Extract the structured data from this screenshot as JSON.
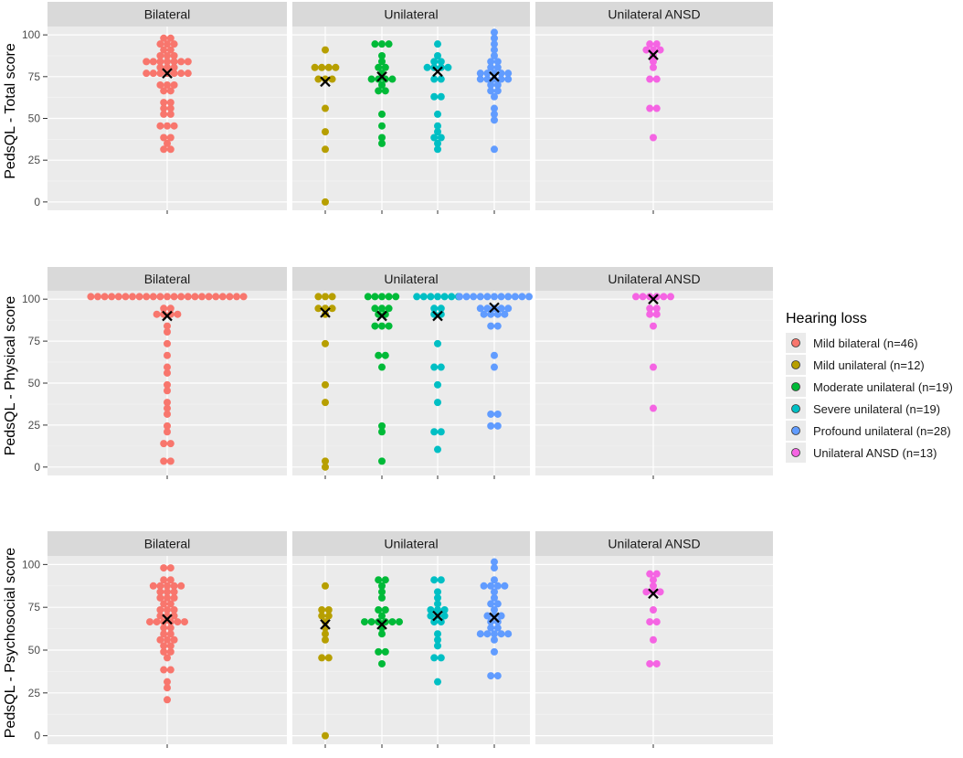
{
  "chart_data": {
    "type": "scatter",
    "subtype": "beeswarm",
    "ylim": [
      -5,
      105
    ],
    "yticks": [
      0,
      25,
      50,
      75,
      100
    ],
    "facet_cols": [
      "Bilateral",
      "Unilateral",
      "Unilateral ANSD"
    ],
    "legend": {
      "title": "Hearing loss",
      "position": "right",
      "items": [
        {
          "key": "mild_bilateral",
          "label": "Mild bilateral (n=46)",
          "color": "#F8766D"
        },
        {
          "key": "mild_unilateral",
          "label": "Mild unilateral (n=12)",
          "color": "#B79F00"
        },
        {
          "key": "moderate_unilateral",
          "label": "Moderate unilateral (n=19)",
          "color": "#00BA38"
        },
        {
          "key": "severe_unilateral",
          "label": "Severe unilateral (n=19)",
          "color": "#00BFC4"
        },
        {
          "key": "profound_unilateral",
          "label": "Profound unilateral (n=28)",
          "color": "#619CFF"
        },
        {
          "key": "unilateral_ansd",
          "label": "Unilateral ANSD (n=13)",
          "color": "#F564E3"
        }
      ]
    },
    "mean_marker": "×",
    "panels": [
      {
        "ylabel": "PedsQL - Total score",
        "facets": [
          {
            "label": "Bilateral",
            "groups": [
              {
                "key": "mild_bilateral",
                "mean": 77,
                "values": [
                  99,
                  99,
                  96,
                  93,
                  93,
                  90,
                  90,
                  88,
                  88,
                  88,
                  85,
                  85,
                  85,
                  85,
                  85,
                  85,
                  85,
                  81,
                  81,
                  81,
                  78,
                  78,
                  76,
                  76,
                  76,
                  76,
                  76,
                  70,
                  70,
                  70,
                  66,
                  66,
                  61,
                  61,
                  56,
                  56,
                  52,
                  52,
                  47,
                  47,
                  47,
                  38,
                  38,
                  36,
                  33,
                  33
                ]
              }
            ]
          },
          {
            "label": "Unilateral",
            "groups": [
              {
                "key": "mild_unilateral",
                "mean": 72,
                "values": [
                  92,
                  81,
                  81,
                  81,
                  81,
                  72,
                  72,
                  55,
                  42,
                  32,
                  0,
                  75
                ]
              },
              {
                "key": "moderate_unilateral",
                "mean": 75,
                "values": [
                  95,
                  95,
                  95,
                  88,
                  85,
                  81,
                  81,
                  78,
                  75,
                  75,
                  75,
                  70,
                  65,
                  65,
                  54,
                  44,
                  38,
                  34,
                  75
                ]
              },
              {
                "key": "severe_unilateral",
                "mean": 78,
                "values": [
                  94,
                  89,
                  85,
                  85,
                  81,
                  81,
                  81,
                  79,
                  75,
                  75,
                  63,
                  63,
                  54,
                  45,
                  42,
                  38,
                  38,
                  34,
                  30
                ]
              },
              {
                "key": "profound_unilateral",
                "mean": 75,
                "values": [
                  100,
                  97,
                  94,
                  91,
                  88,
                  85,
                  85,
                  81,
                  81,
                  78,
                  78,
                  78,
                  76,
                  76,
                  73,
                  73,
                  73,
                  73,
                  73,
                  70,
                  70,
                  66,
                  66,
                  62,
                  57,
                  54,
                  50,
                  33
                ]
              }
            ]
          },
          {
            "label": "Unilateral ANSD",
            "groups": [
              {
                "key": "unilateral_ansd",
                "mean": 88,
                "values": [
                  96,
                  96,
                  91,
                  91,
                  91,
                  88,
                  85,
                  80,
                  75,
                  75,
                  57,
                  57,
                  40
                ]
              }
            ]
          }
        ]
      },
      {
        "ylabel": "PedsQL - Physical score",
        "facets": [
          {
            "label": "Bilateral",
            "groups": [
              {
                "key": "mild_bilateral",
                "mean": 90,
                "values": [
                  100,
                  100,
                  100,
                  100,
                  100,
                  100,
                  100,
                  100,
                  100,
                  100,
                  100,
                  100,
                  100,
                  100,
                  100,
                  100,
                  100,
                  100,
                  100,
                  100,
                  100,
                  100,
                  100,
                  95,
                  95,
                  90,
                  90,
                  90,
                  90,
                  85,
                  80,
                  75,
                  65,
                  60,
                  55,
                  50,
                  45,
                  40,
                  35,
                  30,
                  25,
                  20,
                  15,
                  15,
                  5,
                  5
                ]
              }
            ]
          },
          {
            "label": "Unilateral",
            "groups": [
              {
                "key": "mild_unilateral",
                "mean": 92,
                "values": [
                  100,
                  100,
                  100,
                  95,
                  95,
                  90,
                  75,
                  50,
                  40,
                  5,
                  0,
                  95
                ]
              },
              {
                "key": "moderate_unilateral",
                "mean": 90,
                "values": [
                  100,
                  100,
                  100,
                  100,
                  100,
                  95,
                  95,
                  95,
                  90,
                  90,
                  85,
                  85,
                  85,
                  65,
                  65,
                  60,
                  25,
                  20,
                  5
                ]
              },
              {
                "key": "severe_unilateral",
                "mean": 90,
                "values": [
                  100,
                  100,
                  100,
                  100,
                  100,
                  100,
                  100,
                  95,
                  95,
                  90,
                  90,
                  75,
                  60,
                  60,
                  50,
                  40,
                  20,
                  20,
                  10
                ]
              },
              {
                "key": "profound_unilateral",
                "mean": 95,
                "values": [
                  100,
                  100,
                  100,
                  100,
                  100,
                  100,
                  100,
                  100,
                  100,
                  100,
                  100,
                  95,
                  95,
                  95,
                  95,
                  95,
                  90,
                  90,
                  90,
                  90,
                  85,
                  85,
                  65,
                  60,
                  30,
                  30,
                  25,
                  25
                ]
              }
            ]
          },
          {
            "label": "Unilateral ANSD",
            "groups": [
              {
                "key": "unilateral_ansd",
                "mean": 100,
                "values": [
                  100,
                  100,
                  100,
                  100,
                  100,
                  100,
                  95,
                  95,
                  90,
                  90,
                  85,
                  60,
                  35
                ]
              }
            ]
          }
        ]
      },
      {
        "ylabel": "PedsQL - Psychosocial score",
        "facets": [
          {
            "label": "Bilateral",
            "groups": [
              {
                "key": "mild_bilateral",
                "mean": 68,
                "values": [
                  98,
                  98,
                  90,
                  90,
                  87,
                  87,
                  87,
                  87,
                  87,
                  83,
                  83,
                  83,
                  80,
                  80,
                  80,
                  77,
                  77,
                  73,
                  73,
                  73,
                  70,
                  70,
                  70,
                  67,
                  67,
                  67,
                  67,
                  67,
                  67,
                  63,
                  63,
                  60,
                  60,
                  57,
                  57,
                  57,
                  53,
                  53,
                  50,
                  50,
                  47,
                  40,
                  40,
                  30,
                  28,
                  22
                ]
              }
            ]
          },
          {
            "label": "Unilateral",
            "groups": [
              {
                "key": "mild_unilateral",
                "mean": 65,
                "values": [
                  88,
                  73,
                  73,
                  70,
                  70,
                  67,
                  63,
                  60,
                  57,
                  44,
                  44,
                  0
                ]
              },
              {
                "key": "moderate_unilateral",
                "mean": 65,
                "values": [
                  92,
                  92,
                  87,
                  83,
                  80,
                  73,
                  73,
                  70,
                  67,
                  65,
                  65,
                  65,
                  65,
                  65,
                  63,
                  60,
                  48,
                  48,
                  43
                ]
              },
              {
                "key": "severe_unilateral",
                "mean": 70,
                "values": [
                  90,
                  90,
                  83,
                  80,
                  77,
                  75,
                  73,
                  73,
                  70,
                  70,
                  70,
                  67,
                  65,
                  60,
                  57,
                  53,
                  47,
                  47,
                  33
                ]
              },
              {
                "key": "profound_unilateral",
                "mean": 69,
                "values": [
                  100,
                  97,
                  90,
                  87,
                  87,
                  87,
                  87,
                  83,
                  80,
                  77,
                  77,
                  73,
                  70,
                  70,
                  70,
                  67,
                  67,
                  63,
                  63,
                  60,
                  60,
                  60,
                  60,
                  60,
                  57,
                  50,
                  35,
                  35
                ]
              }
            ]
          },
          {
            "label": "Unilateral ANSD",
            "groups": [
              {
                "key": "unilateral_ansd",
                "mean": 83,
                "values": [
                  93,
                  93,
                  90,
                  87,
                  83,
                  83,
                  83,
                  73,
                  65,
                  65,
                  55,
                  43,
                  43
                ]
              }
            ]
          }
        ]
      }
    ]
  }
}
